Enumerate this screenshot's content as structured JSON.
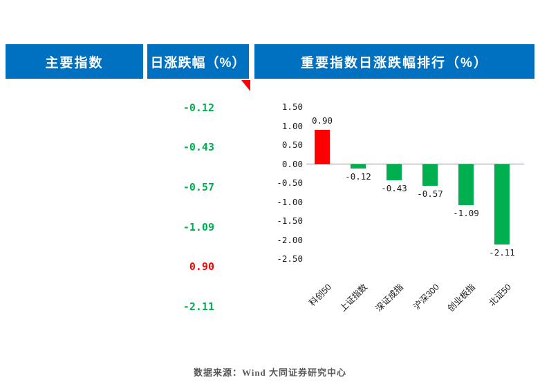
{
  "header": {
    "col1": "主要指数",
    "col2": "日涨跌幅（%）",
    "col3": "重要指数日涨跌幅排行（%）"
  },
  "table": {
    "values": [
      {
        "text": "-0.12",
        "color": "#00b050"
      },
      {
        "text": "-0.43",
        "color": "#00b050"
      },
      {
        "text": "-0.57",
        "color": "#00b050"
      },
      {
        "text": "-1.09",
        "color": "#00b050"
      },
      {
        "text": "0.90",
        "color": "#ff0000"
      },
      {
        "text": "-2.11",
        "color": "#00b050"
      }
    ]
  },
  "chart_data": {
    "type": "bar",
    "title": "重要指数日涨跌幅排行（%）",
    "categories": [
      "科创50",
      "上证指数",
      "深证成指",
      "沪深300",
      "创业板指",
      "北证50"
    ],
    "values": [
      0.9,
      -0.12,
      -0.43,
      -0.57,
      -1.09,
      -2.11
    ],
    "labels": [
      "0.90",
      "-0.12",
      "-0.43",
      "-0.57",
      "-1.09",
      "-2.11"
    ],
    "bar_colors": [
      "#ff0000",
      "#00b050",
      "#00b050",
      "#00b050",
      "#00b050",
      "#00b050"
    ],
    "ylim": [
      -2.5,
      1.5
    ],
    "ytick_step": 0.5,
    "yticks": [
      "1.50",
      "1.00",
      "0.50",
      "0.00",
      "-0.50",
      "-1.00",
      "-1.50",
      "-2.00",
      "-2.50"
    ],
    "grid": false,
    "legend": "none",
    "xlabel": "",
    "ylabel": ""
  },
  "colors": {
    "header_bg": "#0070c0",
    "positive": "#ff0000",
    "negative": "#00b050",
    "marker": "#ff0000"
  },
  "footer": {
    "text": "数据来源：Wind 大同证券研究中心"
  }
}
